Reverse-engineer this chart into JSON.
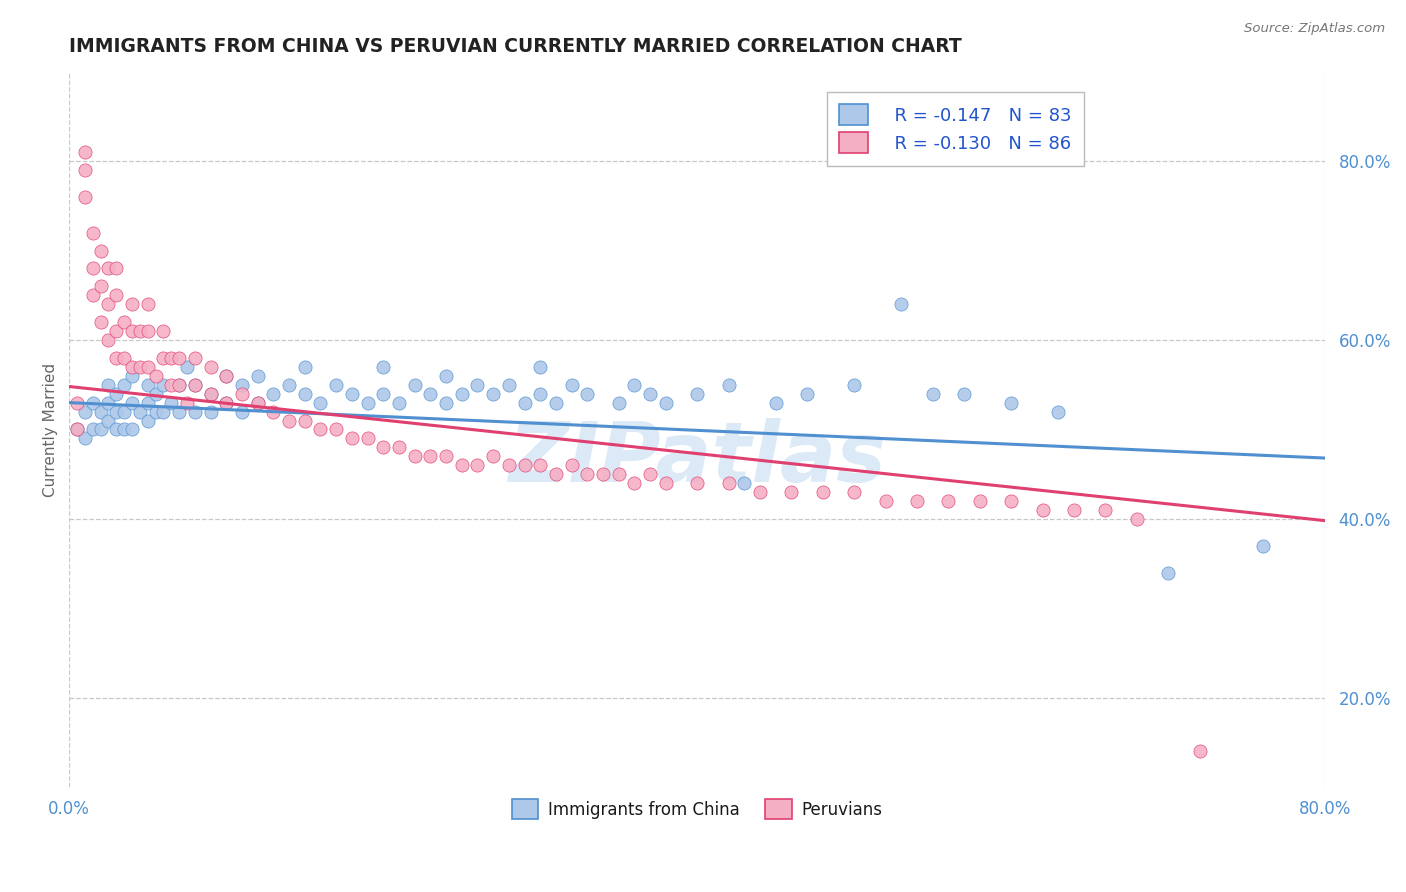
{
  "title": "IMMIGRANTS FROM CHINA VS PERUVIAN CURRENTLY MARRIED CORRELATION CHART",
  "source": "Source: ZipAtlas.com",
  "ylabel": "Currently Married",
  "xlim": [
    0.0,
    0.8
  ],
  "ylim": [
    0.1,
    0.9
  ],
  "color_china": "#adc8e8",
  "color_peru": "#f4afc4",
  "line_color_china": "#5090d0",
  "line_color_peru": "#e04070",
  "legend_r_china": "R = -0.147",
  "legend_n_china": "N = 83",
  "legend_r_peru": "R = -0.130",
  "legend_n_peru": "N = 86",
  "legend_label_china": "Immigrants from China",
  "legend_label_peru": "Peruvians",
  "watermark": "ZIPatlas",
  "background_color": "#ffffff",
  "grid_color": "#c8c8c8",
  "title_color": "#222222",
  "china_trend": [
    0.53,
    0.468
  ],
  "peru_trend": [
    0.548,
    0.398
  ],
  "china_x": [
    0.005,
    0.01,
    0.01,
    0.015,
    0.015,
    0.02,
    0.02,
    0.025,
    0.025,
    0.025,
    0.03,
    0.03,
    0.03,
    0.035,
    0.035,
    0.035,
    0.04,
    0.04,
    0.04,
    0.045,
    0.05,
    0.05,
    0.05,
    0.055,
    0.055,
    0.06,
    0.06,
    0.065,
    0.07,
    0.07,
    0.075,
    0.08,
    0.08,
    0.09,
    0.09,
    0.1,
    0.1,
    0.11,
    0.11,
    0.12,
    0.12,
    0.13,
    0.14,
    0.15,
    0.15,
    0.16,
    0.17,
    0.18,
    0.19,
    0.2,
    0.2,
    0.21,
    0.22,
    0.23,
    0.24,
    0.24,
    0.25,
    0.26,
    0.27,
    0.28,
    0.29,
    0.3,
    0.3,
    0.31,
    0.32,
    0.33,
    0.35,
    0.36,
    0.37,
    0.38,
    0.4,
    0.42,
    0.43,
    0.45,
    0.47,
    0.5,
    0.53,
    0.55,
    0.57,
    0.6,
    0.63,
    0.7,
    0.76
  ],
  "china_y": [
    0.5,
    0.49,
    0.52,
    0.5,
    0.53,
    0.5,
    0.52,
    0.51,
    0.53,
    0.55,
    0.5,
    0.52,
    0.54,
    0.5,
    0.52,
    0.55,
    0.5,
    0.53,
    0.56,
    0.52,
    0.51,
    0.53,
    0.55,
    0.52,
    0.54,
    0.52,
    0.55,
    0.53,
    0.52,
    0.55,
    0.57,
    0.52,
    0.55,
    0.52,
    0.54,
    0.53,
    0.56,
    0.52,
    0.55,
    0.53,
    0.56,
    0.54,
    0.55,
    0.54,
    0.57,
    0.53,
    0.55,
    0.54,
    0.53,
    0.54,
    0.57,
    0.53,
    0.55,
    0.54,
    0.53,
    0.56,
    0.54,
    0.55,
    0.54,
    0.55,
    0.53,
    0.54,
    0.57,
    0.53,
    0.55,
    0.54,
    0.53,
    0.55,
    0.54,
    0.53,
    0.54,
    0.55,
    0.44,
    0.53,
    0.54,
    0.55,
    0.64,
    0.54,
    0.54,
    0.53,
    0.52,
    0.34,
    0.37
  ],
  "peru_x": [
    0.005,
    0.005,
    0.01,
    0.01,
    0.01,
    0.015,
    0.015,
    0.015,
    0.02,
    0.02,
    0.02,
    0.025,
    0.025,
    0.025,
    0.03,
    0.03,
    0.03,
    0.03,
    0.035,
    0.035,
    0.04,
    0.04,
    0.04,
    0.045,
    0.045,
    0.05,
    0.05,
    0.05,
    0.055,
    0.06,
    0.06,
    0.065,
    0.065,
    0.07,
    0.07,
    0.075,
    0.08,
    0.08,
    0.09,
    0.09,
    0.1,
    0.1,
    0.11,
    0.12,
    0.13,
    0.14,
    0.15,
    0.16,
    0.17,
    0.18,
    0.19,
    0.2,
    0.21,
    0.22,
    0.23,
    0.24,
    0.25,
    0.26,
    0.27,
    0.28,
    0.29,
    0.3,
    0.31,
    0.32,
    0.33,
    0.34,
    0.35,
    0.36,
    0.37,
    0.38,
    0.4,
    0.42,
    0.44,
    0.46,
    0.48,
    0.5,
    0.52,
    0.54,
    0.56,
    0.58,
    0.6,
    0.62,
    0.64,
    0.66,
    0.68,
    0.72
  ],
  "peru_y": [
    0.5,
    0.53,
    0.76,
    0.81,
    0.79,
    0.65,
    0.68,
    0.72,
    0.62,
    0.66,
    0.7,
    0.6,
    0.64,
    0.68,
    0.58,
    0.61,
    0.65,
    0.68,
    0.58,
    0.62,
    0.57,
    0.61,
    0.64,
    0.57,
    0.61,
    0.57,
    0.61,
    0.64,
    0.56,
    0.58,
    0.61,
    0.55,
    0.58,
    0.55,
    0.58,
    0.53,
    0.55,
    0.58,
    0.54,
    0.57,
    0.53,
    0.56,
    0.54,
    0.53,
    0.52,
    0.51,
    0.51,
    0.5,
    0.5,
    0.49,
    0.49,
    0.48,
    0.48,
    0.47,
    0.47,
    0.47,
    0.46,
    0.46,
    0.47,
    0.46,
    0.46,
    0.46,
    0.45,
    0.46,
    0.45,
    0.45,
    0.45,
    0.44,
    0.45,
    0.44,
    0.44,
    0.44,
    0.43,
    0.43,
    0.43,
    0.43,
    0.42,
    0.42,
    0.42,
    0.42,
    0.42,
    0.41,
    0.41,
    0.41,
    0.4,
    0.14
  ]
}
